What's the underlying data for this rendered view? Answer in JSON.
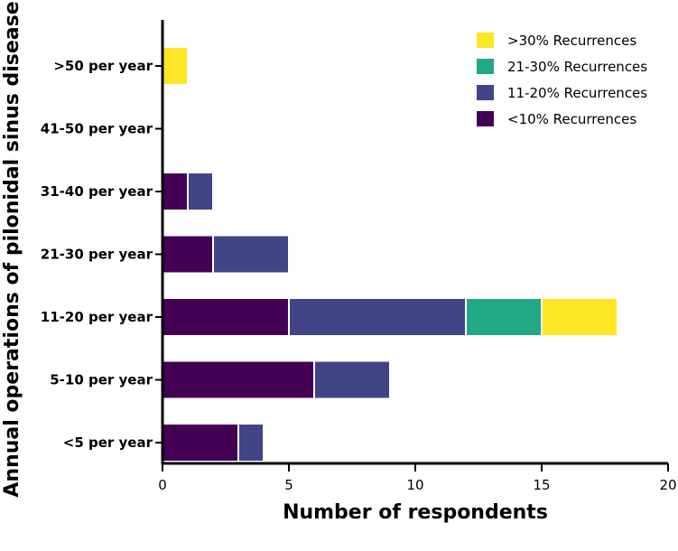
{
  "chart_data": {
    "type": "bar",
    "orientation": "horizontal",
    "stacked": true,
    "title": "",
    "xlabel": "Number of respondents",
    "ylabel": "Annual operations of pilonidal sinus disease",
    "xlim": [
      0,
      20
    ],
    "xticks": [
      "0",
      "5",
      "10",
      "15",
      "20"
    ],
    "categories": [
      ">50 per year",
      "41-50 per year",
      "31-40 per year",
      "21-30 per year",
      "11-20 per year",
      "5-10 per year",
      "<5 per year"
    ],
    "series": [
      {
        "name": "<10% Recurrences",
        "color": "#440154",
        "values": [
          0,
          0,
          1,
          2,
          5,
          6,
          3
        ]
      },
      {
        "name": "11-20% Recurrences",
        "color": "#414487",
        "values": [
          0,
          0,
          1,
          3,
          7,
          3,
          1
        ]
      },
      {
        "name": "21-30% Recurrences",
        "color": "#22A884",
        "values": [
          0,
          0,
          0,
          0,
          3,
          0,
          0
        ]
      },
      {
        "name": ">30% Recurrences",
        "color": "#FDE725",
        "values": [
          1,
          0,
          0,
          0,
          3,
          0,
          0
        ]
      }
    ],
    "legend": {
      "position": "top-right",
      "order": [
        ">30% Recurrences",
        "21-30% Recurrences",
        "11-20% Recurrences",
        "<10% Recurrences"
      ]
    },
    "grid": false
  }
}
